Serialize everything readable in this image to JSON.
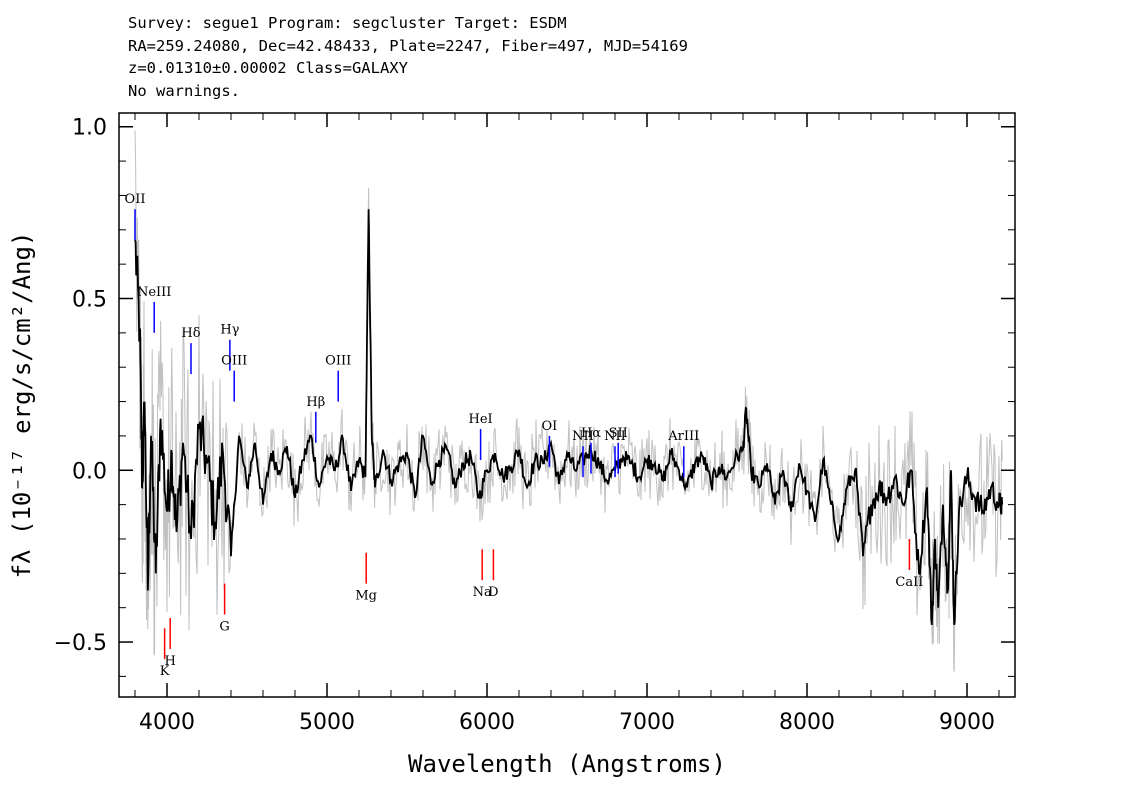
{
  "header": {
    "line1": "Survey: segue1 Program: segcluster Target: ESDM",
    "line2": "RA=259.24080, Dec=42.48433, Plate=2247, Fiber=497, MJD=54169",
    "line3": "z=0.01310±0.00002 Class=GALAXY",
    "line4": "No warnings."
  },
  "chart_data": {
    "type": "line",
    "xlabel": "Wavelength (Angstroms)",
    "ylabel": "fλ (10⁻¹⁷ erg/s/cm²/Ang)",
    "xlim": [
      3700,
      9300
    ],
    "ylim": [
      -0.66,
      1.04
    ],
    "x_ticks": [
      "4000",
      "5000",
      "6000",
      "7000",
      "8000",
      "9000"
    ],
    "y_ticks": [
      "1.0",
      "0.5",
      "0.0",
      "−0.5"
    ],
    "grid": false,
    "colors": {
      "flux": "#000000",
      "error": "#c0c0c0",
      "emission": "#0000ff",
      "absorption": "#ff0000"
    },
    "series": [
      {
        "x": [
          3800,
          3830,
          3845,
          3860,
          3880,
          3900,
          3930,
          3960,
          4000,
          4030,
          4060,
          4100,
          4150,
          4200,
          4250,
          4300,
          4350,
          4400,
          4450,
          4500,
          4550,
          4600,
          4650,
          4700,
          4750,
          4800,
          4850,
          4900,
          4950,
          5000,
          5050,
          5100,
          5150,
          5200,
          5240,
          5260,
          5280,
          5300,
          5350,
          5400,
          5450,
          5500,
          5550,
          5600,
          5650,
          5700,
          5750,
          5800,
          5850,
          5900,
          5950,
          6000,
          6050,
          6100,
          6150,
          6200,
          6250,
          6300,
          6350,
          6400,
          6450,
          6500,
          6550,
          6600,
          6650,
          6700,
          6750,
          6800,
          6850,
          6900,
          6950,
          7000,
          7050,
          7100,
          7150,
          7200,
          7250,
          7300,
          7350,
          7400,
          7450,
          7500,
          7550,
          7600,
          7620,
          7650,
          7700,
          7750,
          7800,
          7850,
          7900,
          7950,
          8000,
          8050,
          8100,
          8150,
          8200,
          8250,
          8300,
          8350,
          8400,
          8450,
          8500,
          8550,
          8600,
          8650,
          8700,
          8750,
          8780,
          8800,
          8820,
          8850,
          8880,
          8900,
          8920,
          8950,
          9000,
          9050,
          9100,
          9150,
          9200,
          9220
        ],
        "y": [
          0.67,
          0.4,
          -0.05,
          0.2,
          -0.35,
          0.1,
          -0.3,
          0.15,
          -0.12,
          0.05,
          -0.18,
          0.08,
          -0.2,
          0.12,
          0.02,
          -0.15,
          0.05,
          -0.25,
          0.1,
          -0.05,
          0.08,
          -0.1,
          0.05,
          0.0,
          0.07,
          -0.08,
          0.03,
          0.1,
          -0.05,
          0.04,
          0.0,
          0.09,
          -0.06,
          0.03,
          -0.02,
          0.76,
          0.1,
          -0.05,
          0.06,
          -0.03,
          0.02,
          0.05,
          -0.08,
          0.1,
          -0.04,
          0.03,
          0.06,
          -0.05,
          0.02,
          0.04,
          -0.08,
          0.0,
          0.05,
          -0.02,
          0.01,
          0.06,
          -0.05,
          0.03,
          0.02,
          0.08,
          -0.04,
          0.05,
          0.0,
          0.03,
          0.06,
          0.02,
          -0.03,
          0.0,
          0.04,
          0.02,
          -0.02,
          0.03,
          0.02,
          -0.03,
          0.05,
          0.0,
          -0.05,
          0.02,
          0.04,
          -0.04,
          0.01,
          -0.02,
          0.03,
          0.06,
          0.18,
          0.0,
          -0.05,
          0.02,
          -0.1,
          0.0,
          -0.12,
          0.02,
          -0.06,
          -0.15,
          0.03,
          -0.1,
          -0.2,
          -0.05,
          0.0,
          -0.25,
          -0.1,
          -0.05,
          -0.08,
          -0.02,
          -0.1,
          0.0,
          -0.3,
          -0.05,
          -0.45,
          -0.2,
          -0.4,
          -0.1,
          -0.35,
          0.0,
          -0.45,
          -0.12,
          -0.02,
          -0.08,
          -0.12,
          -0.05,
          -0.1,
          -0.1
        ]
      }
    ],
    "emission_lines": [
      {
        "label": "OII",
        "x": 3800
      },
      {
        "label": "NeIII",
        "x": 3920
      },
      {
        "label": "Hδ",
        "x": 4150
      },
      {
        "label": "Hγ",
        "x": 4393
      },
      {
        "label": "OIII",
        "x": 4420
      },
      {
        "label": "Hβ",
        "x": 4930
      },
      {
        "label": "OIII",
        "x": 5070
      },
      {
        "label": "HeI",
        "x": 5960
      },
      {
        "label": "OI",
        "x": 6390
      },
      {
        "label": "NII",
        "x": 6600
      },
      {
        "label": "Hα",
        "x": 6650
      },
      {
        "label": "SII",
        "x": 6820
      },
      {
        "label": "NII",
        "x": 6800
      },
      {
        "label": "ArIII",
        "x": 7230
      }
    ],
    "absorption_lines": [
      {
        "label": "K",
        "x": 3985
      },
      {
        "label": "H",
        "x": 4020
      },
      {
        "label": "G",
        "x": 4360
      },
      {
        "label": "Mg",
        "x": 5245
      },
      {
        "label": "Na",
        "x": 5970
      },
      {
        "label": "D",
        "x": 6040
      },
      {
        "label": "CaII",
        "x": 8640
      }
    ]
  }
}
